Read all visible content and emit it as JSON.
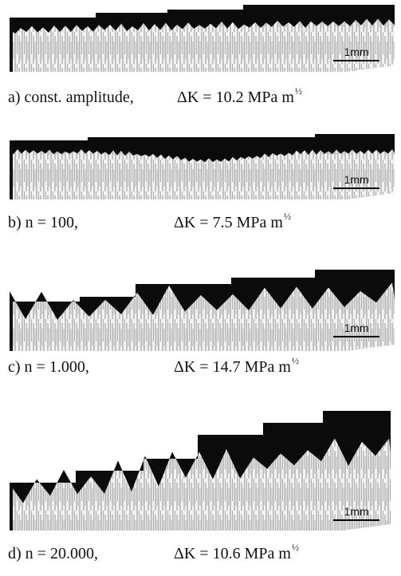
{
  "panels": [
    {
      "label": "a) const. amplitude,",
      "dk": "ΔK = 10.2 MPa m",
      "exponent": "½",
      "scale": "1mm"
    },
    {
      "label": "b) n = 100,",
      "dk": "ΔK = 7.5 MPa m",
      "exponent": "½",
      "scale": "1mm"
    },
    {
      "label": "c) n = 1.000,",
      "dk": "ΔK = 14.7 MPa m",
      "exponent": "½",
      "scale": "1mm"
    },
    {
      "label": "d) n = 20.000,",
      "dk": "ΔK = 10.6 MPa m",
      "exponent": "½",
      "scale": "1mm"
    }
  ]
}
